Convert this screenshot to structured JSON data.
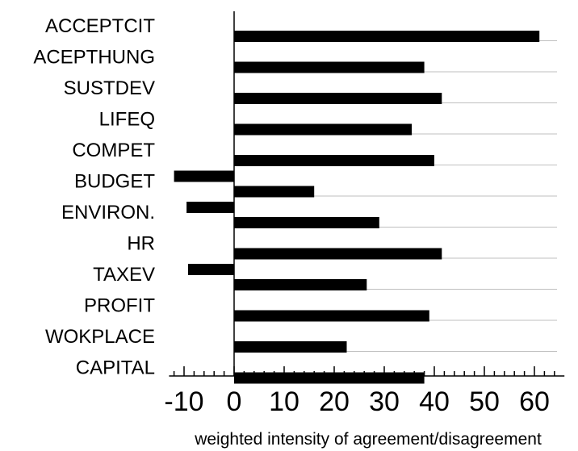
{
  "chart_data": {
    "type": "bar",
    "orientation": "horizontal",
    "categories": [
      "ACCEPTCIT",
      "ACEPTHUNG",
      "SUSTDEV",
      "LIFEQ",
      "COMPET",
      "BUDGET",
      "ENVIRON.",
      "HR",
      "TAXEV",
      "PROFIT",
      "WOKPLACE",
      "CAPITAL"
    ],
    "series": [
      {
        "values": [
          0,
          0,
          0,
          0,
          0,
          -12,
          -9.5,
          0,
          -9.2,
          0,
          0,
          0
        ]
      },
      {
        "values": [
          61,
          38,
          41.5,
          35.5,
          40,
          16,
          29,
          41.5,
          26.5,
          39,
          22.5,
          38
        ]
      }
    ],
    "xlabel": "weighted intensity of agreement/disagreement",
    "xlim": [
      -13,
      66
    ],
    "x_ticks": [
      -10,
      0,
      10,
      20,
      30,
      40,
      50,
      60
    ],
    "x_tick_labels": [
      "-10",
      "0",
      "10",
      "20",
      "30",
      "40",
      "50",
      "60"
    ],
    "grid": "horizontal separators",
    "legend": "none"
  }
}
